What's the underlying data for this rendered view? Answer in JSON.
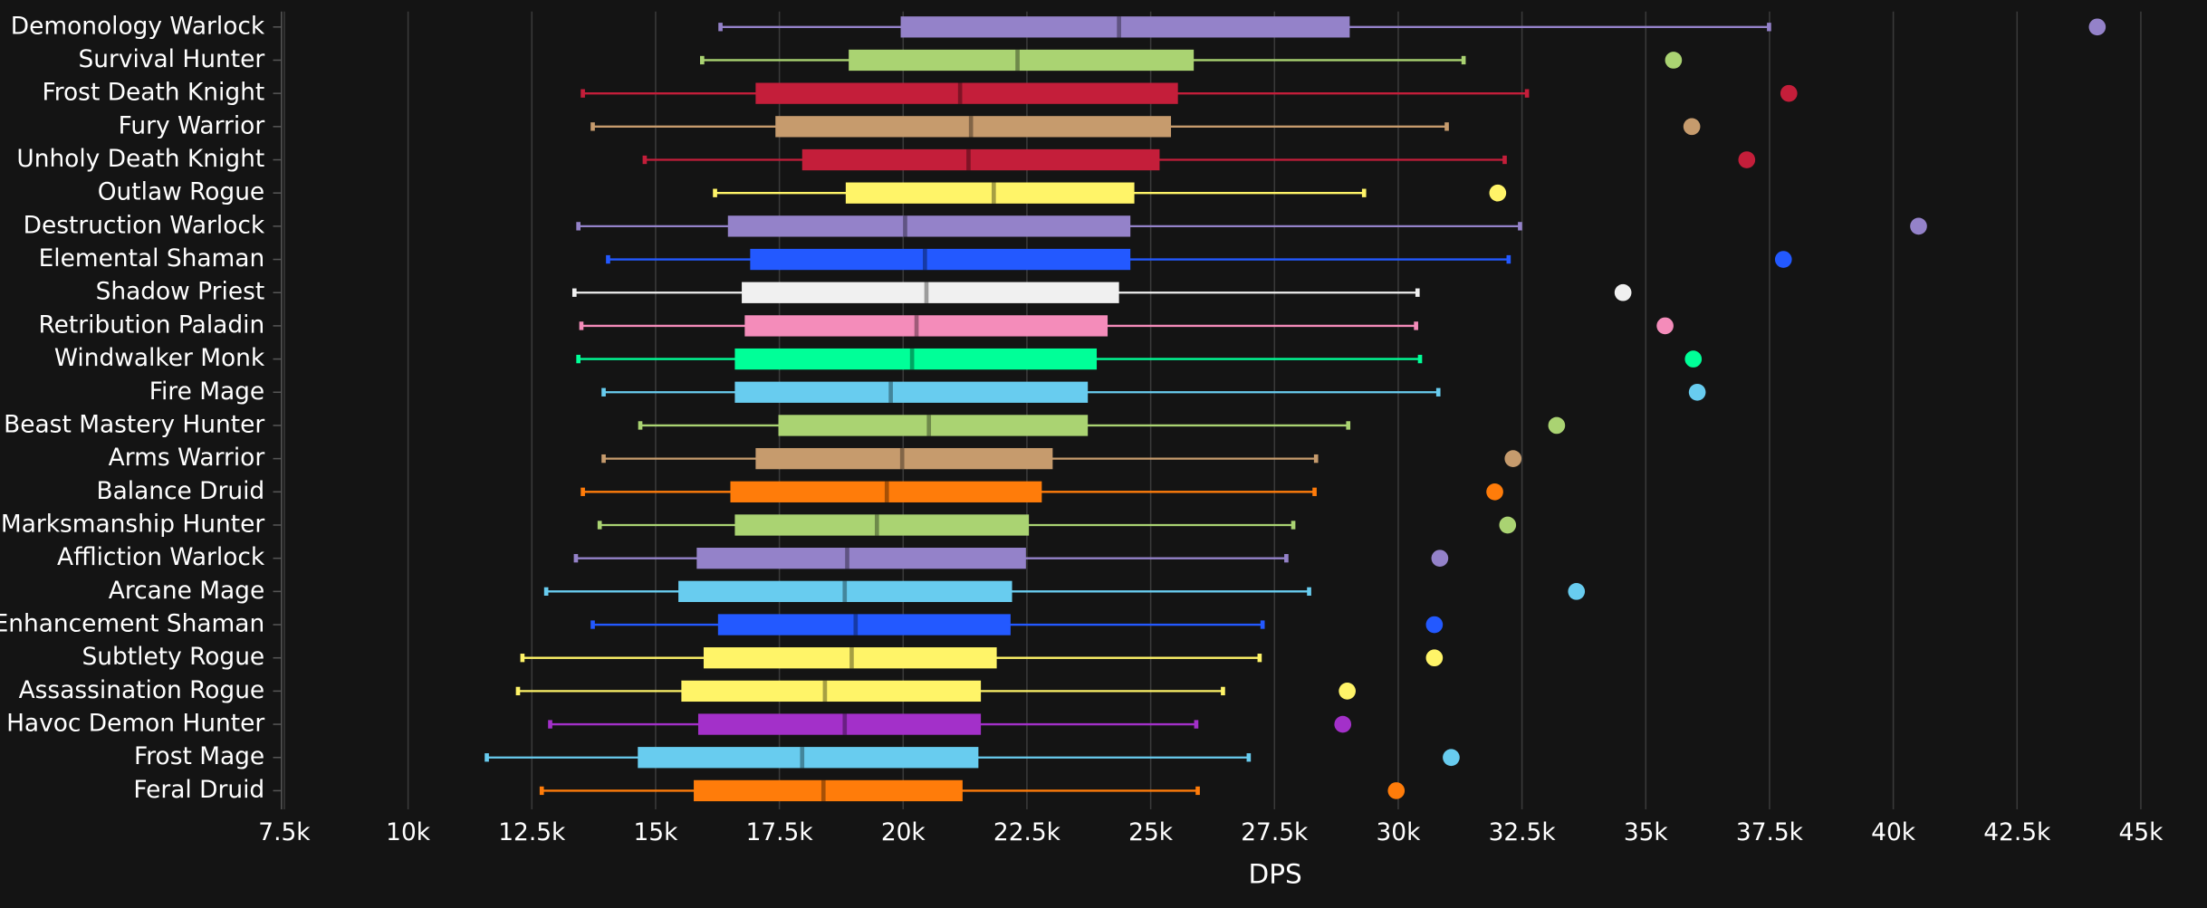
{
  "chart_data": {
    "type": "boxplot",
    "xlabel": "DPS",
    "xlim": [
      7500,
      45000
    ],
    "xticks": [
      {
        "value": 7500,
        "label": "7.5k"
      },
      {
        "value": 10000,
        "label": "10k"
      },
      {
        "value": 12500,
        "label": "12.5k"
      },
      {
        "value": 15000,
        "label": "15k"
      },
      {
        "value": 17500,
        "label": "17.5k"
      },
      {
        "value": 20000,
        "label": "20k"
      },
      {
        "value": 22500,
        "label": "22.5k"
      },
      {
        "value": 25000,
        "label": "25k"
      },
      {
        "value": 27500,
        "label": "27.5k"
      },
      {
        "value": 30000,
        "label": "30k"
      },
      {
        "value": 32500,
        "label": "32.5k"
      },
      {
        "value": 35000,
        "label": "35k"
      },
      {
        "value": 37500,
        "label": "37.5k"
      },
      {
        "value": 40000,
        "label": "40k"
      },
      {
        "value": 42500,
        "label": "42.5k"
      },
      {
        "value": 45000,
        "label": "45k"
      }
    ],
    "grid": true,
    "boxes": [
      {
        "category": "Demonology Warlock",
        "color": "#9482c9",
        "low": 16310,
        "q1": 19950,
        "median": 24360,
        "q3": 29020,
        "high": 37490,
        "outlier": 44120
      },
      {
        "category": "Survival Hunter",
        "color": "#aad372",
        "low": 15940,
        "q1": 18900,
        "median": 22310,
        "q3": 25870,
        "high": 31320,
        "outlier": 35560
      },
      {
        "category": "Frost Death Knight",
        "color": "#c41e3a",
        "low": 13530,
        "q1": 17020,
        "median": 21150,
        "q3": 25550,
        "high": 32600,
        "outlier": 37890
      },
      {
        "category": "Fury Warrior",
        "color": "#c69b6d",
        "low": 13730,
        "q1": 17420,
        "median": 21370,
        "q3": 25410,
        "high": 30980,
        "outlier": 35930
      },
      {
        "category": "Unholy Death Knight",
        "color": "#c41e3a",
        "low": 14780,
        "q1": 17960,
        "median": 21320,
        "q3": 25180,
        "high": 32150,
        "outlier": 37040
      },
      {
        "category": "Outlaw Rogue",
        "color": "#fff468",
        "low": 16200,
        "q1": 18840,
        "median": 21830,
        "q3": 24670,
        "high": 29310,
        "outlier": 32010
      },
      {
        "category": "Destruction Warlock",
        "color": "#9482c9",
        "low": 13440,
        "q1": 16460,
        "median": 20040,
        "q3": 24590,
        "high": 32460,
        "outlier": 40510
      },
      {
        "category": "Elemental Shaman",
        "color": "#2359ff",
        "low": 14040,
        "q1": 16910,
        "median": 20440,
        "q3": 24590,
        "high": 32230,
        "outlier": 37780
      },
      {
        "category": "Shadow Priest",
        "color": "#f0f0f0",
        "low": 13360,
        "q1": 16740,
        "median": 20470,
        "q3": 24360,
        "high": 30390,
        "outlier": 34540
      },
      {
        "category": "Retribution Paladin",
        "color": "#f48cba",
        "low": 13500,
        "q1": 16800,
        "median": 20270,
        "q3": 24130,
        "high": 30360,
        "outlier": 35390
      },
      {
        "category": "Windwalker Monk",
        "color": "#00ff98",
        "low": 13440,
        "q1": 16600,
        "median": 20180,
        "q3": 23910,
        "high": 30440,
        "outlier": 35960
      },
      {
        "category": "Fire Mage",
        "color": "#68ccef",
        "low": 13950,
        "q1": 16600,
        "median": 19750,
        "q3": 23730,
        "high": 30810,
        "outlier": 36040
      },
      {
        "category": "Beast Mastery Hunter",
        "color": "#aad372",
        "low": 14690,
        "q1": 17480,
        "median": 20520,
        "q3": 23730,
        "high": 28990,
        "outlier": 33200
      },
      {
        "category": "Arms Warrior",
        "color": "#c69b6d",
        "low": 13950,
        "q1": 17020,
        "median": 19980,
        "q3": 23020,
        "high": 28340,
        "outlier": 32320
      },
      {
        "category": "Balance Druid",
        "color": "#ff7c0a",
        "low": 13530,
        "q1": 16510,
        "median": 19670,
        "q3": 22800,
        "high": 28310,
        "outlier": 31950
      },
      {
        "category": "Marksmanship Hunter",
        "color": "#aad372",
        "low": 13870,
        "q1": 16600,
        "median": 19470,
        "q3": 22540,
        "high": 27880,
        "outlier": 32210
      },
      {
        "category": "Affliction Warlock",
        "color": "#9482c9",
        "low": 13390,
        "q1": 15830,
        "median": 18870,
        "q3": 22480,
        "high": 27740,
        "outlier": 30840
      },
      {
        "category": "Arcane Mage",
        "color": "#68ccef",
        "low": 12790,
        "q1": 15460,
        "median": 18820,
        "q3": 22200,
        "high": 28200,
        "outlier": 33600
      },
      {
        "category": "Enhancement Shaman",
        "color": "#2359ff",
        "low": 13730,
        "q1": 16260,
        "median": 19040,
        "q3": 22170,
        "high": 27260,
        "outlier": 30730
      },
      {
        "category": "Subtlety Rogue",
        "color": "#fff468",
        "low": 12310,
        "q1": 15970,
        "median": 18960,
        "q3": 21890,
        "high": 27200,
        "outlier": 30730
      },
      {
        "category": "Assassination Rogue",
        "color": "#fff468",
        "low": 12220,
        "q1": 15520,
        "median": 18420,
        "q3": 21570,
        "high": 26460,
        "outlier": 28970
      },
      {
        "category": "Havoc Demon Hunter",
        "color": "#a330c9",
        "low": 12870,
        "q1": 15860,
        "median": 18820,
        "q3": 21570,
        "high": 25920,
        "outlier": 28880
      },
      {
        "category": "Frost Mage",
        "color": "#68ccef",
        "low": 11590,
        "q1": 14640,
        "median": 17960,
        "q3": 21520,
        "high": 26980,
        "outlier": 31070
      },
      {
        "category": "Feral Druid",
        "color": "#ff7c0a",
        "low": 12700,
        "q1": 15770,
        "median": 18390,
        "q3": 21200,
        "high": 25950,
        "outlier": 29960
      }
    ]
  }
}
